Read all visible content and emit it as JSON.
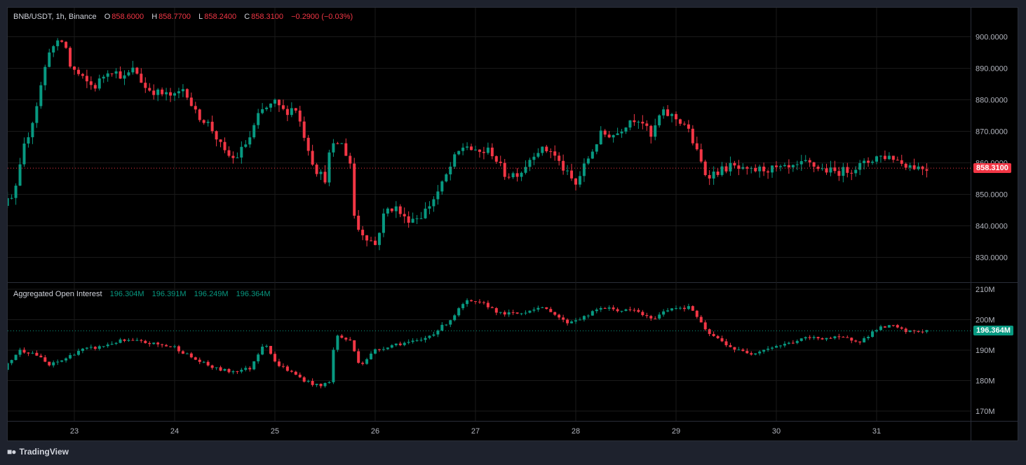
{
  "header": {
    "symbol": "BNB/USDT, 1h, Binance",
    "o_label": "O",
    "o_value": "858.6000",
    "h_label": "H",
    "h_value": "858.7700",
    "l_label": "L",
    "l_value": "858.2400",
    "c_label": "C",
    "c_value": "858.3100",
    "change": "−0.2900 (−0.03%)"
  },
  "oi_header": {
    "title": "Aggregated Open Interest",
    "v1": "196.304M",
    "v2": "196.391M",
    "v3": "196.249M",
    "v4": "196.364M"
  },
  "last_price_label": "858.3100",
  "last_oi_label": "196.364M",
  "brand": {
    "name": "TradingView",
    "logo_icon": "tradingview-logo-icon"
  },
  "colors": {
    "up": "#089981",
    "down": "#f23645",
    "background": "#000000",
    "grid": "#1a1a1a"
  },
  "chart_data": [
    {
      "type": "candlestick",
      "title": "BNB/USDT, 1h, Binance",
      "x_ticks": [
        "23",
        "24",
        "25",
        "26",
        "27",
        "28",
        "29",
        "30",
        "31"
      ],
      "y_ticks": [
        "900.0000",
        "890.0000",
        "880.0000",
        "870.0000",
        "860.0000",
        "850.0000",
        "840.0000",
        "830.0000"
      ],
      "ylim": [
        824,
        906
      ],
      "last_value": 858.31,
      "close_path": [
        [
          22.0,
          851
        ],
        [
          22.3,
          847
        ],
        [
          22.4,
          849
        ],
        [
          22.5,
          865
        ],
        [
          22.6,
          875
        ],
        [
          22.75,
          896
        ],
        [
          22.9,
          899
        ],
        [
          22.95,
          891
        ],
        [
          23.1,
          886
        ],
        [
          23.2,
          884
        ],
        [
          23.35,
          890
        ],
        [
          23.5,
          887
        ],
        [
          23.6,
          890
        ],
        [
          23.7,
          884
        ],
        [
          23.85,
          882
        ],
        [
          24.0,
          881
        ],
        [
          24.1,
          884
        ],
        [
          24.2,
          876
        ],
        [
          24.35,
          872
        ],
        [
          24.5,
          863
        ],
        [
          24.6,
          861
        ],
        [
          24.75,
          868
        ],
        [
          24.85,
          876
        ],
        [
          25.0,
          879
        ],
        [
          25.1,
          876
        ],
        [
          25.2,
          878
        ],
        [
          25.3,
          868
        ],
        [
          25.4,
          858
        ],
        [
          25.5,
          855
        ],
        [
          25.55,
          864
        ],
        [
          25.65,
          867
        ],
        [
          25.75,
          860
        ],
        [
          25.8,
          840
        ],
        [
          25.9,
          837
        ],
        [
          26.0,
          834
        ],
        [
          26.1,
          845
        ],
        [
          26.2,
          846
        ],
        [
          26.3,
          842
        ],
        [
          26.45,
          843
        ],
        [
          26.55,
          847
        ],
        [
          26.65,
          852
        ],
        [
          26.8,
          862
        ],
        [
          26.9,
          866
        ],
        [
          27.0,
          863
        ],
        [
          27.15,
          864
        ],
        [
          27.3,
          856
        ],
        [
          27.45,
          857
        ],
        [
          27.6,
          864
        ],
        [
          27.75,
          864
        ],
        [
          27.9,
          857
        ],
        [
          28.0,
          853
        ],
        [
          28.1,
          860
        ],
        [
          28.25,
          869
        ],
        [
          28.4,
          869
        ],
        [
          28.55,
          874
        ],
        [
          28.65,
          874
        ],
        [
          28.75,
          868
        ],
        [
          28.85,
          876
        ],
        [
          28.95,
          875
        ],
        [
          29.1,
          872
        ],
        [
          29.3,
          856
        ],
        [
          29.4,
          857
        ],
        [
          29.55,
          859
        ],
        [
          29.7,
          857
        ],
        [
          29.85,
          858
        ],
        [
          30.0,
          858
        ],
        [
          30.15,
          858
        ],
        [
          30.3,
          860
        ],
        [
          30.45,
          858
        ],
        [
          30.6,
          857
        ],
        [
          30.75,
          858
        ],
        [
          30.9,
          860
        ],
        [
          31.0,
          862
        ],
        [
          31.15,
          862
        ],
        [
          31.25,
          860
        ],
        [
          31.35,
          859
        ],
        [
          31.48,
          858.3
        ]
      ]
    },
    {
      "type": "candlestick",
      "title": "Aggregated Open Interest",
      "x_ticks": [
        "23",
        "24",
        "25",
        "26",
        "27",
        "28",
        "29",
        "30",
        "31"
      ],
      "y_ticks": [
        "210M",
        "200M",
        "190M",
        "180M",
        "170M"
      ],
      "ylim": [
        166,
        211
      ],
      "last_value": 196.364,
      "close_path": [
        [
          22.0,
          178
        ],
        [
          22.15,
          172
        ],
        [
          22.3,
          184
        ],
        [
          22.45,
          190
        ],
        [
          22.6,
          189
        ],
        [
          22.75,
          185
        ],
        [
          22.9,
          187
        ],
        [
          23.05,
          190
        ],
        [
          23.25,
          191
        ],
        [
          23.45,
          193
        ],
        [
          23.6,
          193
        ],
        [
          23.8,
          192
        ],
        [
          24.0,
          191
        ],
        [
          24.2,
          187
        ],
        [
          24.4,
          184
        ],
        [
          24.55,
          183
        ],
        [
          24.75,
          184
        ],
        [
          24.9,
          193
        ],
        [
          25.0,
          186
        ],
        [
          25.15,
          183
        ],
        [
          25.3,
          180
        ],
        [
          25.45,
          178
        ],
        [
          25.55,
          180
        ],
        [
          25.6,
          195
        ],
        [
          25.75,
          193
        ],
        [
          25.85,
          185
        ],
        [
          26.0,
          190
        ],
        [
          26.2,
          192
        ],
        [
          26.45,
          193
        ],
        [
          26.6,
          196
        ],
        [
          26.75,
          200
        ],
        [
          26.9,
          206
        ],
        [
          27.1,
          205
        ],
        [
          27.25,
          202
        ],
        [
          27.45,
          202
        ],
        [
          27.6,
          204
        ],
        [
          27.75,
          203
        ],
        [
          27.9,
          199
        ],
        [
          28.1,
          201
        ],
        [
          28.25,
          204
        ],
        [
          28.45,
          203
        ],
        [
          28.6,
          203
        ],
        [
          28.75,
          200
        ],
        [
          28.95,
          204
        ],
        [
          29.15,
          204
        ],
        [
          29.3,
          196
        ],
        [
          29.45,
          193
        ],
        [
          29.6,
          190
        ],
        [
          29.75,
          189
        ],
        [
          29.95,
          191
        ],
        [
          30.1,
          192
        ],
        [
          30.3,
          194
        ],
        [
          30.45,
          194
        ],
        [
          30.65,
          194
        ],
        [
          30.85,
          193
        ],
        [
          31.0,
          197
        ],
        [
          31.15,
          198
        ],
        [
          31.3,
          196
        ],
        [
          31.48,
          196.36
        ]
      ]
    }
  ]
}
